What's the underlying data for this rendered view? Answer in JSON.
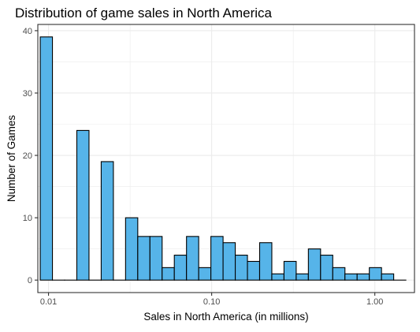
{
  "chart_data": {
    "type": "bar",
    "title": "Distribution of game sales in North America",
    "xlabel": "Sales in North America (in millions)",
    "ylabel": "Number of Games",
    "x_scale": "log10",
    "xlim": [
      0.0086,
      1.75
    ],
    "ylim": [
      -2,
      41
    ],
    "grid": true,
    "x_ticks": [
      0.01,
      0.1,
      1.0
    ],
    "x_tick_labels": [
      "0.01",
      "0.10",
      "1.00"
    ],
    "y_ticks": [
      0,
      10,
      20,
      30,
      40
    ],
    "y_tick_labels": [
      "0",
      "10",
      "20",
      "30",
      "40"
    ],
    "bin_count": 30,
    "bin_range": [
      0.0089,
      1.55
    ],
    "values": [
      39,
      0,
      0,
      24,
      0,
      19,
      0,
      10,
      7,
      7,
      2,
      4,
      7,
      2,
      7,
      6,
      4,
      3,
      6,
      1,
      3,
      1,
      5,
      4,
      2,
      1,
      1,
      2,
      1,
      0
    ],
    "bar_color": "#56B4E9",
    "bar_outline": "#000000",
    "panel_border": "#333333",
    "grid_color": "#EBEBEB"
  }
}
